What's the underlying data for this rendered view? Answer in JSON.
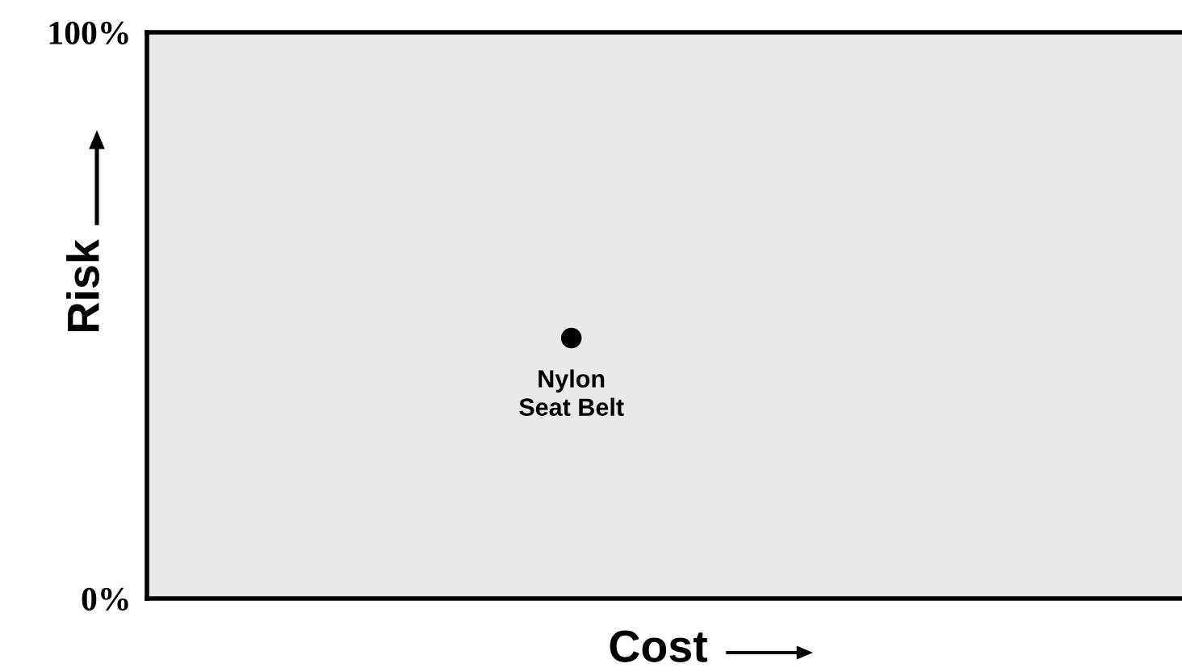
{
  "chart_data": {
    "type": "scatter",
    "xlabel": "Cost",
    "ylabel": "Risk",
    "categories": [
      null,
      null,
      null,
      null,
      null,
      null,
      null,
      null,
      null,
      null,
      null
    ],
    "values": [
      null,
      null,
      null,
      null,
      46,
      null,
      null,
      null,
      null,
      null,
      null
    ],
    "color": "#000000",
    "marker": "circle",
    "ylim": [
      0,
      100
    ],
    "yticks": [
      {
        "value": 0,
        "label": "0%"
      },
      {
        "value": 100,
        "label": "100%"
      }
    ],
    "tick_labels": "y",
    "legend": false,
    "annotations": [
      {
        "text": "Nylon\nSeat Belt",
        "y": 46
      }
    ]
  }
}
